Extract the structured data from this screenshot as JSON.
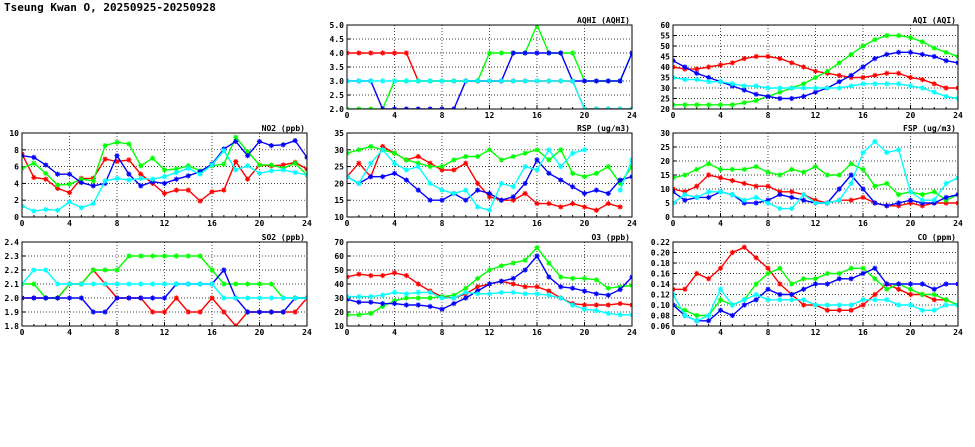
{
  "header": {
    "title": "Tseung Kwan O, 20250925-20250928"
  },
  "colors": {
    "day1": "#ff0000",
    "day2": "#00ff00",
    "day3": "#0000ff",
    "day4": "#00ffff"
  },
  "chart_data": [
    {
      "type": "line",
      "title": "AQHI (AQHI)",
      "ylim": [
        2,
        5
      ],
      "yticks": [
        "2.0",
        "2.5",
        "3.0",
        "3.5",
        "4.0",
        "4.5",
        "5.0"
      ],
      "xlim": [
        0,
        24
      ],
      "xticks": [
        "0",
        "4",
        "8",
        "12",
        "16",
        "20",
        "24"
      ],
      "grid": true,
      "series": [
        {
          "color": "#ff0000",
          "values": [
            4,
            4,
            4,
            4,
            4,
            4,
            3,
            3,
            3,
            3,
            3,
            3,
            3,
            3,
            3,
            3,
            3,
            3,
            3,
            3,
            2,
            2,
            2,
            2,
            2
          ]
        },
        {
          "color": "#00ff00",
          "values": [
            2,
            2,
            2,
            2,
            3,
            3,
            3,
            3,
            3,
            3,
            3,
            3,
            4,
            4,
            4,
            4,
            5,
            4,
            4,
            4,
            3,
            3,
            3,
            3,
            4
          ]
        },
        {
          "color": "#0000ff",
          "values": [
            3,
            3,
            3,
            2,
            2,
            2,
            2,
            2,
            2,
            2,
            3,
            3,
            3,
            3,
            4,
            4,
            4,
            4,
            4,
            3,
            3,
            3,
            3,
            3,
            4
          ]
        },
        {
          "color": "#00ffff",
          "values": [
            3,
            3,
            3,
            3,
            3,
            3,
            3,
            3,
            3,
            3,
            3,
            3,
            3,
            3,
            3,
            3,
            3,
            3,
            3,
            3,
            2,
            2,
            2,
            2,
            2
          ]
        }
      ]
    },
    {
      "type": "line",
      "title": "AQI (AQI)",
      "ylim": [
        20,
        60
      ],
      "yticks": [
        "20",
        "25",
        "30",
        "35",
        "40",
        "45",
        "50",
        "55",
        "60"
      ],
      "xlim": [
        0,
        24
      ],
      "xticks": [
        "0",
        "4",
        "8",
        "12",
        "16",
        "20",
        "24"
      ],
      "grid": true,
      "series": [
        {
          "color": "#ff0000",
          "values": [
            40,
            39,
            39,
            40,
            41,
            42,
            44,
            45,
            45,
            44,
            42,
            40,
            38,
            37,
            36,
            35,
            35,
            36,
            37,
            37,
            35,
            34,
            32,
            30,
            30
          ]
        },
        {
          "color": "#00ff00",
          "values": [
            22,
            22,
            22,
            22,
            22,
            22,
            23,
            24,
            26,
            28,
            30,
            32,
            35,
            38,
            42,
            46,
            50,
            53,
            55,
            55,
            54,
            52,
            49,
            47,
            45
          ]
        },
        {
          "color": "#0000ff",
          "values": [
            43,
            40,
            37,
            35,
            33,
            31,
            29,
            27,
            26,
            25,
            25,
            26,
            28,
            30,
            33,
            36,
            40,
            44,
            46,
            47,
            47,
            46,
            45,
            43,
            42
          ]
        },
        {
          "color": "#00ffff",
          "values": [
            35,
            34,
            34,
            33,
            33,
            32,
            31,
            31,
            30,
            30,
            30,
            30,
            30,
            30,
            30,
            31,
            32,
            32,
            32,
            32,
            31,
            30,
            28,
            26,
            25
          ]
        }
      ]
    },
    {
      "type": "line",
      "title": "NO2 (ppb)",
      "ylim": [
        0,
        10
      ],
      "yticks": [
        "0",
        "2",
        "4",
        "6",
        "8",
        "10"
      ],
      "xlim": [
        0,
        24
      ],
      "xticks": [
        "0",
        "4",
        "8",
        "12",
        "16",
        "20",
        "24"
      ],
      "grid": true,
      "series": [
        {
          "color": "#ff0000",
          "values": [
            7.5,
            4.7,
            4.5,
            3.4,
            2.9,
            4.6,
            4.6,
            6.9,
            6.6,
            6.8,
            5.1,
            4,
            2.8,
            3.2,
            3.2,
            1.9,
            3,
            3.2,
            6.6,
            4.5,
            6.2,
            6.1,
            6.2,
            6.5,
            5.7
          ]
        },
        {
          "color": "#00ff00",
          "values": [
            5.8,
            6.4,
            5.2,
            3.8,
            3.9,
            4.5,
            4.3,
            8.5,
            8.9,
            8.7,
            6.1,
            7,
            5.6,
            5.7,
            6.1,
            5.5,
            6.1,
            6.3,
            9.5,
            7.8,
            6.2,
            6.2,
            5.8,
            6.4,
            5
          ]
        },
        {
          "color": "#0000ff",
          "values": [
            7.3,
            7.1,
            6.2,
            5.1,
            5.1,
            4.1,
            3.7,
            4,
            7.3,
            5.1,
            3.7,
            4.2,
            4,
            4.5,
            4.9,
            5.4,
            6.3,
            8.1,
            9,
            7.3,
            9,
            8.5,
            8.6,
            9.1,
            7.1
          ]
        },
        {
          "color": "#00ffff",
          "values": [
            1.3,
            0.7,
            0.9,
            0.8,
            1.8,
            1.1,
            1.6,
            4.3,
            4.6,
            4.4,
            4.6,
            4.5,
            4.8,
            5.3,
            5.8,
            5.1,
            6.2,
            7.9,
            5.6,
            6.1,
            5.2,
            5.5,
            5.6,
            5.3,
            5
          ]
        }
      ]
    },
    {
      "type": "line",
      "title": "RSP (ug/m3)",
      "ylim": [
        10,
        35
      ],
      "yticks": [
        "10",
        "15",
        "20",
        "25",
        "30",
        "35"
      ],
      "xlim": [
        0,
        24
      ],
      "xticks": [
        "0",
        "4",
        "8",
        "12",
        "16",
        "20",
        "24"
      ],
      "grid": true,
      "series": [
        {
          "color": "#ff0000",
          "values": [
            22,
            26,
            22,
            31,
            29,
            27,
            28,
            26,
            24,
            24,
            26,
            20,
            16,
            15,
            15,
            17,
            14,
            14,
            13,
            14,
            13,
            12,
            14,
            13,
            null
          ]
        },
        {
          "color": "#00ff00",
          "values": [
            29,
            30,
            31,
            30,
            29,
            27,
            26,
            25,
            25,
            27,
            28,
            28,
            30,
            27,
            28,
            29,
            30,
            27,
            30,
            23,
            22,
            23,
            25,
            20,
            25
          ]
        },
        {
          "color": "#0000ff",
          "values": [
            22,
            20,
            22,
            22,
            23,
            21,
            18,
            15,
            15,
            17,
            15,
            18,
            17,
            15,
            16,
            20,
            27,
            23,
            21,
            19,
            17,
            18,
            17,
            21,
            22
          ]
        },
        {
          "color": "#00ffff",
          "values": [
            22,
            20,
            26,
            30,
            26,
            24,
            25,
            20,
            18,
            17,
            18,
            13,
            12,
            20,
            19,
            25,
            24,
            30,
            25,
            29,
            30,
            null,
            null,
            18,
            27
          ]
        }
      ]
    },
    {
      "type": "line",
      "title": "FSP (ug/m3)",
      "ylim": [
        0,
        30
      ],
      "yticks": [
        "0",
        "5",
        "10",
        "15",
        "20",
        "25",
        "30"
      ],
      "xlim": [
        0,
        24
      ],
      "xticks": [
        "0",
        "4",
        "8",
        "12",
        "16",
        "20",
        "24"
      ],
      "grid": true,
      "series": [
        {
          "color": "#ff0000",
          "values": [
            10,
            9,
            11,
            15,
            14,
            13,
            12,
            11,
            11,
            9,
            9,
            8,
            6,
            5,
            6,
            6,
            7,
            5,
            4,
            4,
            5,
            4,
            5,
            5,
            5
          ]
        },
        {
          "color": "#00ff00",
          "values": [
            14,
            15,
            17,
            19,
            17,
            17,
            17,
            18,
            16,
            15,
            17,
            16,
            18,
            15,
            15,
            19,
            17,
            11,
            12,
            8,
            9,
            8,
            9,
            6,
            8
          ]
        },
        {
          "color": "#0000ff",
          "values": [
            9,
            6,
            7,
            7,
            9,
            8,
            5,
            5,
            6,
            8,
            7,
            6,
            5,
            5,
            10,
            15,
            10,
            5,
            4,
            5,
            6,
            5,
            5,
            7,
            8
          ]
        },
        {
          "color": "#00ffff",
          "values": [
            5,
            8,
            7,
            9,
            9,
            8,
            6,
            7,
            5,
            3,
            3,
            8,
            5,
            5,
            6,
            12,
            23,
            27,
            23,
            24,
            9,
            6,
            6,
            12,
            14
          ]
        }
      ]
    },
    {
      "type": "line",
      "title": "SO2 (ppb)",
      "ylim": [
        1.8,
        2.4
      ],
      "yticks": [
        "1.8",
        "1.9",
        "2.0",
        "2.1",
        "2.2",
        "2.3",
        "2.4"
      ],
      "xlim": [
        0,
        24
      ],
      "xticks": [
        "0",
        "4",
        "8",
        "12",
        "16",
        "20",
        "24"
      ],
      "grid": true,
      "series": [
        {
          "color": "#ff0000",
          "values": [
            2,
            2,
            2,
            2,
            2.1,
            2.1,
            2.2,
            2.1,
            2,
            2,
            2,
            1.9,
            1.9,
            2,
            1.9,
            1.9,
            2,
            1.9,
            1.8,
            1.9,
            1.9,
            1.9,
            1.9,
            1.9,
            2
          ]
        },
        {
          "color": "#00ff00",
          "values": [
            2.1,
            2.1,
            2,
            2,
            2.1,
            2.1,
            2.2,
            2.2,
            2.2,
            2.3,
            2.3,
            2.3,
            2.3,
            2.3,
            2.3,
            2.3,
            2.2,
            2.1,
            2.1,
            2.1,
            2.1,
            2.1,
            2,
            2,
            2
          ]
        },
        {
          "color": "#0000ff",
          "values": [
            2,
            2,
            2,
            2,
            2,
            2,
            1.9,
            1.9,
            2,
            2,
            2,
            2,
            2,
            2.1,
            2.1,
            2.1,
            2.1,
            2.2,
            2,
            1.9,
            1.9,
            1.9,
            1.9,
            2,
            2
          ]
        },
        {
          "color": "#00ffff",
          "values": [
            2.1,
            2.2,
            2.2,
            2.1,
            2.1,
            2.1,
            2.1,
            2.1,
            2.1,
            2.1,
            2.1,
            2.1,
            2.1,
            2.1,
            2.1,
            2.1,
            2.1,
            2,
            2,
            2,
            2,
            2,
            2,
            2,
            2
          ]
        }
      ]
    },
    {
      "type": "line",
      "title": "O3 (ppb)",
      "ylim": [
        10,
        70
      ],
      "yticks": [
        "10",
        "20",
        "30",
        "40",
        "50",
        "60",
        "70"
      ],
      "xlim": [
        0,
        24
      ],
      "xticks": [
        "0",
        "4",
        "8",
        "12",
        "16",
        "20",
        "24"
      ],
      "grid": true,
      "series": [
        {
          "color": "#ff0000",
          "values": [
            45,
            47,
            46,
            46,
            48,
            46,
            40,
            35,
            31,
            30,
            33,
            38,
            40,
            42,
            40,
            38,
            38,
            35,
            30,
            26,
            25,
            25,
            25,
            26,
            25
          ]
        },
        {
          "color": "#00ff00",
          "values": [
            18,
            18,
            19,
            24,
            28,
            30,
            30,
            30,
            31,
            32,
            37,
            44,
            50,
            53,
            55,
            57,
            66,
            55,
            45,
            44,
            44,
            43,
            37,
            38,
            39
          ]
        },
        {
          "color": "#0000ff",
          "values": [
            29,
            27,
            27,
            26,
            26,
            25,
            25,
            24,
            22,
            26,
            30,
            35,
            40,
            42,
            44,
            50,
            60,
            45,
            38,
            37,
            35,
            33,
            32,
            36,
            45
          ]
        },
        {
          "color": "#00ffff",
          "values": [
            31,
            31,
            31,
            32,
            34,
            33,
            34,
            34,
            30,
            30,
            34,
            33,
            33,
            34,
            34,
            33,
            33,
            32,
            30,
            25,
            22,
            21,
            19,
            18,
            18
          ]
        }
      ]
    },
    {
      "type": "line",
      "title": "CO (ppm)",
      "ylim": [
        0.06,
        0.22
      ],
      "yticks": [
        "0.06",
        "0.08",
        "0.10",
        "0.12",
        "0.14",
        "0.16",
        "0.18",
        "0.20",
        "0.22"
      ],
      "xlim": [
        0,
        24
      ],
      "xticks": [
        "0",
        "4",
        "8",
        "12",
        "16",
        "20",
        "24"
      ],
      "grid": true,
      "series": [
        {
          "color": "#ff0000",
          "values": [
            0.13,
            0.13,
            0.16,
            0.15,
            0.17,
            0.2,
            0.21,
            0.19,
            0.17,
            0.14,
            0.12,
            0.1,
            0.1,
            0.09,
            0.09,
            0.09,
            0.1,
            0.12,
            0.14,
            0.13,
            0.12,
            0.12,
            0.11,
            0.11,
            0.1
          ]
        },
        {
          "color": "#00ff00",
          "values": [
            0.1,
            0.09,
            0.08,
            0.08,
            0.11,
            0.1,
            0.11,
            0.14,
            0.16,
            0.17,
            0.14,
            0.15,
            0.15,
            0.16,
            0.16,
            0.17,
            0.17,
            0.15,
            0.13,
            0.14,
            0.13,
            0.12,
            0.12,
            0.11,
            0.1
          ]
        },
        {
          "color": "#0000ff",
          "values": [
            0.1,
            0.08,
            0.07,
            0.07,
            0.09,
            0.08,
            0.1,
            0.11,
            0.13,
            0.12,
            0.12,
            0.13,
            0.14,
            0.14,
            0.15,
            0.15,
            0.16,
            0.17,
            0.14,
            0.14,
            0.14,
            0.14,
            0.13,
            0.14,
            0.14
          ]
        },
        {
          "color": "#00ffff",
          "values": [
            0.12,
            0.08,
            0.07,
            0.08,
            0.13,
            0.1,
            0.11,
            0.12,
            0.11,
            0.11,
            0.11,
            0.11,
            0.1,
            0.1,
            0.1,
            0.1,
            0.11,
            0.11,
            0.11,
            0.1,
            0.1,
            0.09,
            0.09,
            0.1,
            0.1
          ]
        }
      ]
    }
  ]
}
